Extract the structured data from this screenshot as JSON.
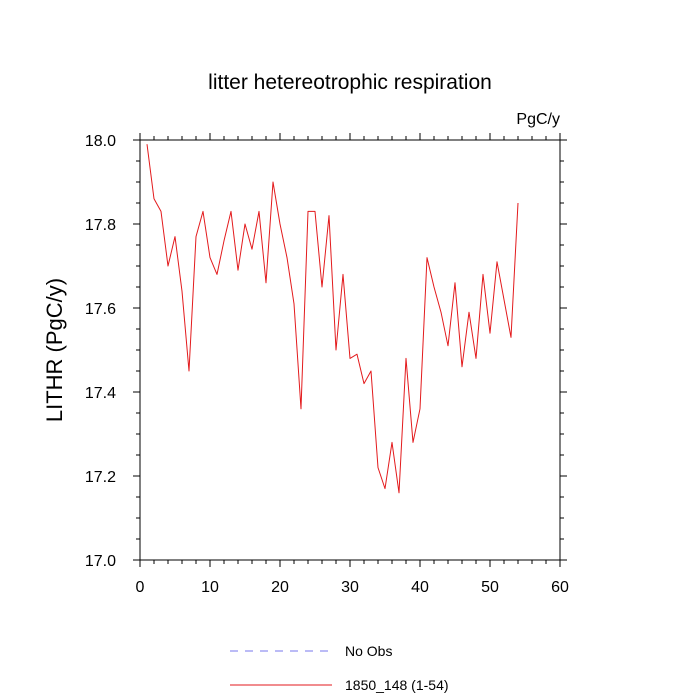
{
  "chart_data": {
    "type": "line",
    "title": "litter hetereotrophic respiration",
    "units_label": "PgC/y",
    "xlabel": "",
    "ylabel": "LITHR  (PgC/y)",
    "xlim": [
      0,
      60
    ],
    "ylim": [
      17.0,
      18.0
    ],
    "x_ticks": [
      0,
      10,
      20,
      30,
      40,
      50,
      60
    ],
    "x_tick_labels": [
      "0",
      "10",
      "20",
      "30",
      "40",
      "50",
      "60"
    ],
    "y_ticks": [
      17.0,
      17.2,
      17.4,
      17.6,
      17.8,
      18.0
    ],
    "y_tick_labels": [
      "17.0",
      "17.2",
      "17.4",
      "17.6",
      "17.8",
      "18.0"
    ],
    "grid": false,
    "legend_position": "bottom-center",
    "legend": [
      {
        "name": "No Obs",
        "color": "#7777ee",
        "style": "dashed"
      },
      {
        "name": "1850_148 (1-54)",
        "color": "#e31a1c",
        "style": "solid"
      }
    ],
    "series": [
      {
        "name": "1850_148 (1-54)",
        "color": "#e31a1c",
        "x": [
          1,
          2,
          3,
          4,
          5,
          6,
          7,
          8,
          9,
          10,
          11,
          12,
          13,
          14,
          15,
          16,
          17,
          18,
          19,
          20,
          21,
          22,
          23,
          24,
          25,
          26,
          27,
          28,
          29,
          30,
          31,
          32,
          33,
          34,
          35,
          36,
          37,
          38,
          39,
          40,
          41,
          42,
          43,
          44,
          45,
          46,
          47,
          48,
          49,
          50,
          51,
          52,
          53,
          54
        ],
        "values": [
          17.99,
          17.86,
          17.83,
          17.7,
          17.77,
          17.64,
          17.45,
          17.77,
          17.83,
          17.72,
          17.68,
          17.76,
          17.83,
          17.69,
          17.8,
          17.74,
          17.83,
          17.66,
          17.9,
          17.8,
          17.72,
          17.61,
          17.36,
          17.83,
          17.83,
          17.65,
          17.82,
          17.5,
          17.68,
          17.48,
          17.49,
          17.42,
          17.45,
          17.22,
          17.17,
          17.28,
          17.16,
          17.48,
          17.28,
          17.36,
          17.72,
          17.65,
          17.59,
          17.51,
          17.66,
          17.46,
          17.59,
          17.48,
          17.68,
          17.54,
          17.71,
          17.62,
          17.53,
          17.85
        ]
      }
    ]
  }
}
